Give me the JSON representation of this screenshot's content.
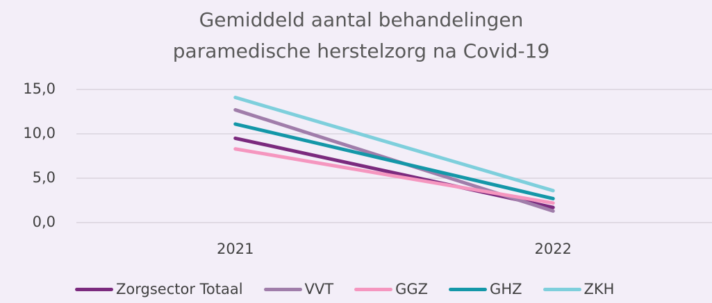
{
  "chart_data": {
    "type": "line",
    "title": "Gemiddeld aantal behandelingen paramedische herstelzorg na Covid-19",
    "categories": [
      "2021",
      "2022"
    ],
    "series": [
      {
        "name": "Zorgsector Totaal",
        "color": "#7b2a7e",
        "values": [
          9.5,
          1.7
        ]
      },
      {
        "name": "VVT",
        "color": "#a07daa",
        "values": [
          12.7,
          1.3
        ]
      },
      {
        "name": "GGZ",
        "color": "#f596bf",
        "values": [
          8.3,
          2.2
        ]
      },
      {
        "name": "GHZ",
        "color": "#1497a8",
        "values": [
          11.1,
          2.7
        ]
      },
      {
        "name": "ZKH",
        "color": "#7ecfdc",
        "values": [
          14.1,
          3.6
        ]
      }
    ],
    "ylim": [
      0,
      15
    ],
    "yticks": [
      {
        "value": 0,
        "label": "0,0"
      },
      {
        "value": 5,
        "label": "5,0"
      },
      {
        "value": 10,
        "label": "10,0"
      },
      {
        "value": 15,
        "label": "15,0"
      }
    ],
    "grid": true,
    "legend": "bottom"
  }
}
